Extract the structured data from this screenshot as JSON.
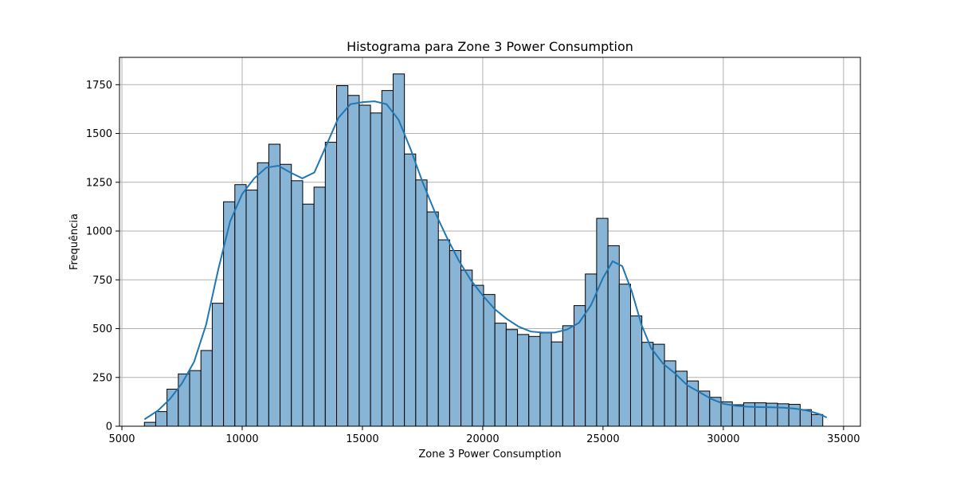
{
  "chart_data": {
    "type": "bar",
    "title": "Histograma para Zone 3  Power Consumption",
    "xlabel": "Zone 3  Power Consumption",
    "ylabel": "Frequência",
    "xlim": [
      4900,
      35700
    ],
    "ylim": [
      0,
      1890
    ],
    "xticks": [
      5000,
      10000,
      15000,
      20000,
      25000,
      30000,
      35000
    ],
    "xtick_labels": [
      "5000",
      "10000",
      "15000",
      "20000",
      "25000",
      "30000",
      "35000"
    ],
    "yticks": [
      0,
      250,
      500,
      750,
      1000,
      1250,
      1500,
      1750
    ],
    "ytick_labels": [
      "0",
      "250",
      "500",
      "750",
      "1000",
      "1250",
      "1500",
      "1750"
    ],
    "grid": true,
    "bin_start": 5935,
    "bin_width": 470,
    "counts": [
      20,
      75,
      190,
      268,
      285,
      388,
      630,
      1150,
      1238,
      1210,
      1350,
      1445,
      1342,
      1258,
      1138,
      1225,
      1455,
      1745,
      1695,
      1645,
      1605,
      1720,
      1805,
      1395,
      1262,
      1098,
      955,
      900,
      800,
      722,
      675,
      528,
      495,
      470,
      460,
      478,
      432,
      515,
      618,
      780,
      1065,
      925,
      728,
      565,
      430,
      420,
      335,
      282,
      232,
      180,
      148,
      125,
      110,
      120,
      120,
      118,
      115,
      112,
      85,
      60
    ],
    "kde": {
      "x": [
        5935,
        6500,
        7000,
        7500,
        8000,
        8500,
        9000,
        9500,
        10000,
        10500,
        11000,
        11500,
        12000,
        12500,
        13000,
        13500,
        14000,
        14500,
        15000,
        15500,
        16000,
        16500,
        17000,
        17500,
        18000,
        18500,
        19000,
        19500,
        20000,
        20500,
        21000,
        21500,
        22000,
        22500,
        23000,
        23500,
        24000,
        24500,
        25000,
        25400,
        25800,
        26200,
        26600,
        27000,
        27500,
        28000,
        28500,
        29000,
        29500,
        30000,
        30500,
        31000,
        31500,
        32000,
        32500,
        33000,
        33500,
        34000,
        34300
      ],
      "y": [
        35,
        80,
        140,
        220,
        330,
        520,
        800,
        1050,
        1190,
        1270,
        1325,
        1335,
        1300,
        1270,
        1300,
        1440,
        1580,
        1650,
        1660,
        1665,
        1650,
        1570,
        1420,
        1250,
        1100,
        970,
        850,
        750,
        670,
        600,
        550,
        510,
        485,
        480,
        480,
        495,
        530,
        620,
        760,
        845,
        820,
        690,
        520,
        400,
        320,
        270,
        210,
        175,
        140,
        115,
        105,
        100,
        98,
        97,
        95,
        90,
        80,
        62,
        45
      ]
    },
    "colors": {
      "bar_fill": "#88b4d6",
      "bar_edge": "#000000",
      "kde_line": "#1f77b4",
      "grid": "#b0b0b0"
    }
  }
}
